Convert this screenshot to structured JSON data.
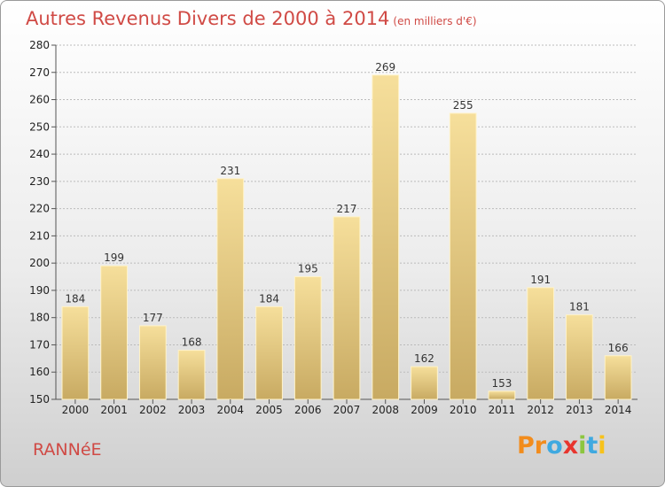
{
  "header": {
    "title": "Autres Revenus Divers de 2000 à 2014",
    "unit": "(en milliers d'€)"
  },
  "footer": {
    "location": "RANNéE",
    "brand": "Proxiti",
    "brand_colors": [
      "#f28c1c",
      "#f28c1c",
      "#3fa9e0",
      "#e8352e",
      "#8cc63f",
      "#3fa9e0",
      "#f7c21b"
    ]
  },
  "colors": {
    "title": "#d04a45",
    "bar_light": "#f6df9b",
    "bar_dark": "#c8aa62",
    "grid": "#bbbbbb"
  },
  "chart_data": {
    "type": "bar",
    "title": "Autres Revenus Divers de 2000 à 2014",
    "subtitle": "(en milliers d'€)",
    "categories": [
      "2000",
      "2001",
      "2002",
      "2003",
      "2004",
      "2005",
      "2006",
      "2007",
      "2008",
      "2009",
      "2010",
      "2011",
      "2012",
      "2013",
      "2014"
    ],
    "values": [
      184,
      199,
      177,
      168,
      231,
      184,
      195,
      217,
      269,
      162,
      255,
      153,
      191,
      181,
      166
    ],
    "ylim": [
      150,
      280
    ],
    "yticks": [
      150,
      160,
      170,
      180,
      190,
      200,
      210,
      220,
      230,
      240,
      250,
      260,
      270,
      280
    ],
    "grid": true,
    "xlabel": "",
    "ylabel": ""
  }
}
